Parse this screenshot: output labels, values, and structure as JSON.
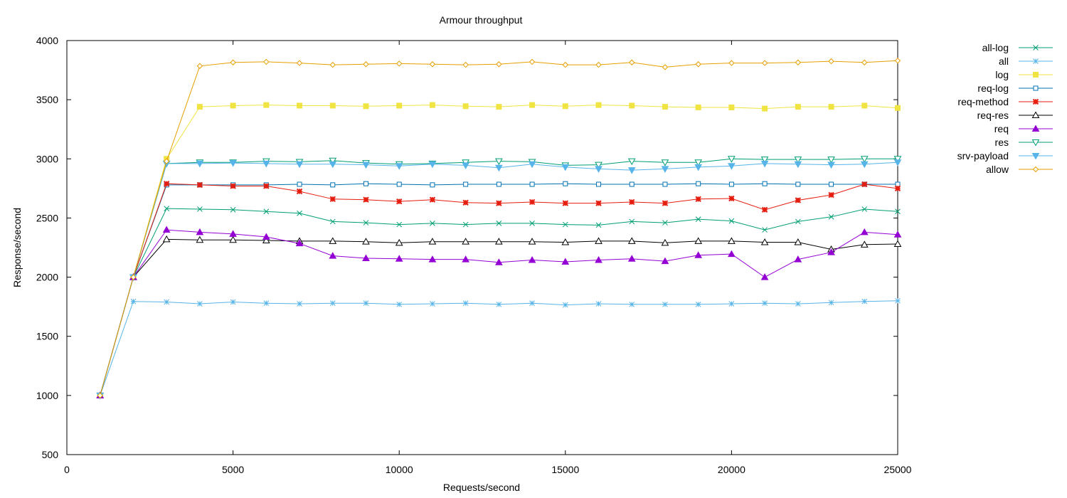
{
  "chart_data": {
    "type": "line",
    "title": "Armour throughput",
    "xlabel": "Requests/second",
    "ylabel": "Response/second",
    "xlim": [
      0,
      25000
    ],
    "ylim": [
      500,
      4000
    ],
    "xticks": [
      0,
      5000,
      10000,
      15000,
      20000,
      25000
    ],
    "yticks": [
      500,
      1000,
      1500,
      2000,
      2500,
      3000,
      3500,
      4000
    ],
    "grid": false,
    "legend_position": "right",
    "x": [
      1000,
      2000,
      3000,
      4000,
      5000,
      6000,
      7000,
      8000,
      9000,
      10000,
      11000,
      12000,
      13000,
      14000,
      15000,
      16000,
      17000,
      18000,
      19000,
      20000,
      21000,
      22000,
      23000,
      24000,
      25000
    ],
    "series": [
      {
        "name": "all-log",
        "color": "#009e73",
        "marker": "x",
        "values": [
          1000,
          2000,
          2580,
          2575,
          2570,
          2555,
          2540,
          2470,
          2460,
          2445,
          2455,
          2445,
          2455,
          2455,
          2445,
          2440,
          2470,
          2460,
          2490,
          2475,
          2400,
          2470,
          2510,
          2575,
          2555
        ]
      },
      {
        "name": "all",
        "color": "#56b4e9",
        "marker": "star",
        "values": [
          1000,
          1795,
          1790,
          1775,
          1790,
          1780,
          1775,
          1780,
          1780,
          1770,
          1775,
          1780,
          1770,
          1780,
          1765,
          1775,
          1770,
          1770,
          1770,
          1775,
          1780,
          1775,
          1785,
          1795,
          1800
        ]
      },
      {
        "name": "log",
        "color": "#f0e442",
        "marker": "square-filled",
        "values": [
          1000,
          2000,
          3000,
          3440,
          3450,
          3455,
          3450,
          3450,
          3445,
          3450,
          3455,
          3445,
          3440,
          3455,
          3445,
          3455,
          3450,
          3440,
          3435,
          3435,
          3425,
          3440,
          3440,
          3450,
          3430
        ]
      },
      {
        "name": "req-log",
        "color": "#0072b2",
        "marker": "square-open",
        "values": [
          1000,
          2000,
          2780,
          2780,
          2780,
          2780,
          2785,
          2780,
          2790,
          2785,
          2780,
          2785,
          2785,
          2785,
          2790,
          2785,
          2785,
          2785,
          2790,
          2785,
          2790,
          2785,
          2785,
          2785,
          2785
        ]
      },
      {
        "name": "req-method",
        "color": "#e51e10",
        "marker": "star-filled",
        "values": [
          1000,
          2000,
          2790,
          2780,
          2770,
          2770,
          2725,
          2660,
          2655,
          2640,
          2655,
          2630,
          2625,
          2635,
          2625,
          2625,
          2635,
          2625,
          2660,
          2665,
          2570,
          2650,
          2695,
          2785,
          2750
        ]
      },
      {
        "name": "req-res",
        "color": "#000000",
        "marker": "triangle-open",
        "values": [
          1000,
          2000,
          2320,
          2315,
          2315,
          2310,
          2305,
          2305,
          2300,
          2290,
          2300,
          2300,
          2300,
          2300,
          2295,
          2305,
          2305,
          2290,
          2305,
          2305,
          2295,
          2295,
          2235,
          2275,
          2280
        ]
      },
      {
        "name": "req",
        "color": "#9400d3",
        "marker": "triangle-filled",
        "values": [
          1000,
          2000,
          2400,
          2380,
          2365,
          2340,
          2285,
          2180,
          2160,
          2155,
          2150,
          2150,
          2125,
          2145,
          2130,
          2145,
          2155,
          2135,
          2185,
          2195,
          2000,
          2150,
          2210,
          2380,
          2360
        ]
      },
      {
        "name": "res",
        "color": "#009e73",
        "marker": "triangle-down-open",
        "values": [
          1000,
          2000,
          2960,
          2970,
          2970,
          2980,
          2975,
          2985,
          2965,
          2955,
          2960,
          2970,
          2980,
          2975,
          2945,
          2950,
          2980,
          2970,
          2970,
          3000,
          2995,
          2995,
          2995,
          3000,
          3000
        ]
      },
      {
        "name": "srv-payload",
        "color": "#56b4e9",
        "marker": "triangle-down-filled",
        "values": [
          1000,
          2000,
          2960,
          2960,
          2965,
          2960,
          2955,
          2955,
          2950,
          2940,
          2955,
          2945,
          2925,
          2955,
          2930,
          2915,
          2905,
          2915,
          2930,
          2940,
          2960,
          2955,
          2950,
          2955,
          2970
        ]
      },
      {
        "name": "allow",
        "color": "#e69f00",
        "marker": "diamond-open",
        "values": [
          1000,
          2000,
          2980,
          3785,
          3815,
          3820,
          3810,
          3795,
          3800,
          3805,
          3800,
          3795,
          3800,
          3820,
          3795,
          3795,
          3815,
          3775,
          3800,
          3810,
          3810,
          3815,
          3825,
          3815,
          3830
        ]
      }
    ]
  }
}
